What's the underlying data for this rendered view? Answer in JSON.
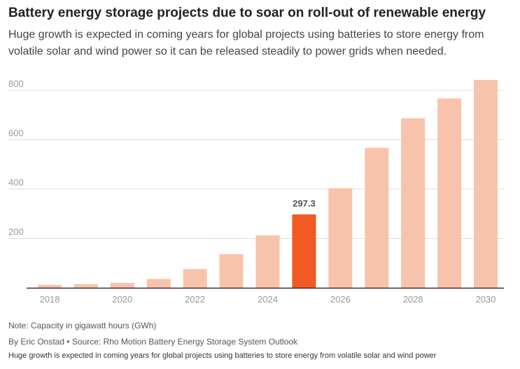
{
  "header": {
    "title": "Battery energy storage projects due to soar on roll-out of renewable energy",
    "subtitle": "Huge growth is expected in coming years for global projects using batteries to store energy from volatile solar and wind power so it can be released steadily to power grids when needed."
  },
  "footer": {
    "note": "Note: Capacity in gigawatt hours (GWh)",
    "source": "By Eric Onstad • Source: Rho Motion Battery Energy Storage System Outlook",
    "caption": "Huge growth is expected in coming years for global projects using batteries to store energy from volatile solar and wind power"
  },
  "colors": {
    "bar": "#f9c3ab",
    "highlight": "#f15a22",
    "grid": "#dddddd",
    "axis": "#333333",
    "tick_text": "#999999"
  },
  "chart_data": {
    "type": "bar",
    "title": "Battery energy storage projects due to soar on roll-out of renewable energy",
    "xlabel": "",
    "ylabel": "",
    "categories": [
      "2018",
      "2019",
      "2020",
      "2021",
      "2022",
      "2023",
      "2024",
      "2025",
      "2026",
      "2027",
      "2028",
      "2029",
      "2030"
    ],
    "values": [
      12,
      15,
      20,
      36,
      76,
      136,
      212,
      297.3,
      403,
      567,
      687,
      767,
      842
    ],
    "highlight_index": 7,
    "data_labels": [
      {
        "index": 7,
        "text": "297.3"
      }
    ],
    "ylim": [
      0,
      850
    ],
    "yticks": [
      200,
      400,
      600,
      800
    ],
    "xtick_labels": [
      "2018",
      "2020",
      "2022",
      "2024",
      "2026",
      "2028",
      "2030"
    ],
    "grid": true,
    "note": "Note: Capacity in gigawatt hours (GWh)"
  }
}
